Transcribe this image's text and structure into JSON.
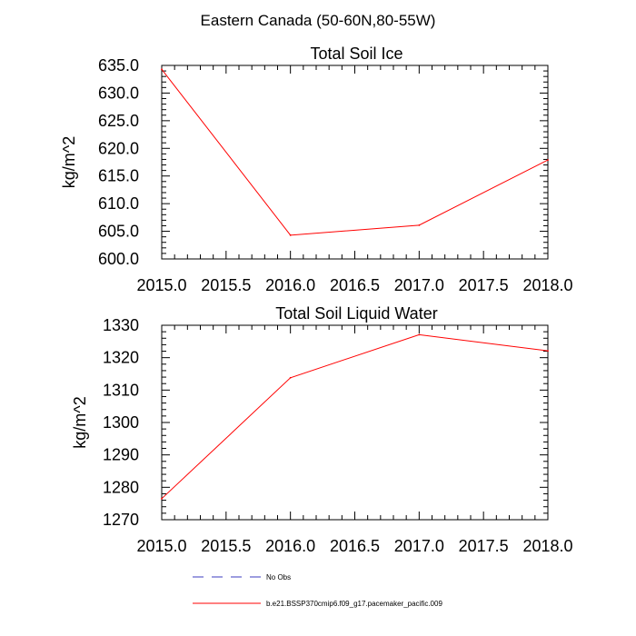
{
  "figure": {
    "title": "Eastern Canada (50-60N,80-55W)"
  },
  "chart_data": [
    {
      "type": "line",
      "title": "Total Soil Ice",
      "ylabel": "kg/m^2",
      "xlabel": "",
      "xlim": [
        2015.0,
        2018.0
      ],
      "ylim": [
        600.0,
        635.0
      ],
      "x_ticks": [
        "2015.0",
        "2015.5",
        "2016.0",
        "2016.5",
        "2017.0",
        "2017.5",
        "2018.0"
      ],
      "y_ticks": [
        "600.0",
        "605.0",
        "610.0",
        "615.0",
        "620.0",
        "625.0",
        "630.0",
        "635.0"
      ],
      "series": [
        {
          "name": "b.e21.BSSP370cmip6.f09_g17.pacemaker_pacific.009",
          "color": "#ff0000",
          "x": [
            2015.0,
            2016.0,
            2017.0,
            2018.0
          ],
          "y": [
            634.3,
            604.3,
            606.1,
            617.9
          ]
        }
      ]
    },
    {
      "type": "line",
      "title": "Total Soil Liquid Water",
      "ylabel": "kg/m^2",
      "xlabel": "",
      "xlim": [
        2015.0,
        2018.0
      ],
      "ylim": [
        1270,
        1330
      ],
      "x_ticks": [
        "2015.0",
        "2015.5",
        "2016.0",
        "2016.5",
        "2017.0",
        "2017.5",
        "2018.0"
      ],
      "y_ticks": [
        "1270",
        "1280",
        "1290",
        "1300",
        "1310",
        "1320",
        "1330"
      ],
      "series": [
        {
          "name": "b.e21.BSSP370cmip6.f09_g17.pacemaker_pacific.009",
          "color": "#ff0000",
          "x": [
            2015.0,
            2016.0,
            2017.0,
            2018.0
          ],
          "y": [
            1276.5,
            1313.8,
            1327.1,
            1322.1
          ]
        }
      ]
    }
  ],
  "legend": {
    "placement": "bottom",
    "entries": [
      {
        "label": "No Obs",
        "color": "#3b3bbf",
        "style": "dashed"
      },
      {
        "label": "b.e21.BSSP370cmip6.f09_g17.pacemaker_pacific.009",
        "color": "#ff0000",
        "style": "solid"
      }
    ]
  }
}
